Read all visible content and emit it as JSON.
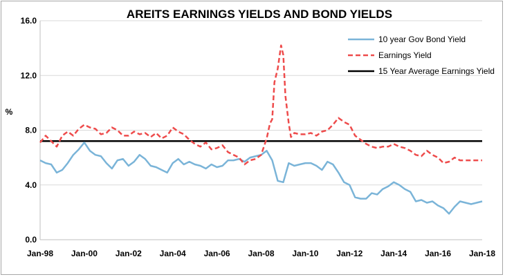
{
  "chart_data": {
    "type": "line",
    "title": "AREITS EARNINGS YIELDS AND BOND YIELDS",
    "ylabel": "%",
    "xlabel": "",
    "ylim": [
      0,
      16
    ],
    "xlim": [
      1998,
      2018
    ],
    "y_ticks": [
      "0.0",
      "4.0",
      "8.0",
      "12.0",
      "16.0"
    ],
    "y_tick_values": [
      0,
      4,
      8,
      12,
      16
    ],
    "x_ticks": [
      "Jan-98",
      "Jan-00",
      "Jan-02",
      "Jan-04",
      "Jan-06",
      "Jan-08",
      "Jan-10",
      "Jan-12",
      "Jan-14",
      "Jan-16",
      "Jan-18"
    ],
    "x_tick_values": [
      1998,
      2000,
      2002,
      2004,
      2006,
      2008,
      2010,
      2012,
      2014,
      2016,
      2018
    ],
    "legend_position": "top-right",
    "grid": "horizontal",
    "series": [
      {
        "name": "10 year Gov Bond Yield",
        "color": "#7ab4d8",
        "style": "solid",
        "x": [
          1998.0,
          1998.25,
          1998.5,
          1998.75,
          1999.0,
          1999.25,
          1999.5,
          1999.75,
          2000.0,
          2000.25,
          2000.5,
          2000.75,
          2001.0,
          2001.25,
          2001.5,
          2001.75,
          2002.0,
          2002.25,
          2002.5,
          2002.75,
          2003.0,
          2003.25,
          2003.5,
          2003.75,
          2004.0,
          2004.25,
          2004.5,
          2004.75,
          2005.0,
          2005.25,
          2005.5,
          2005.75,
          2006.0,
          2006.25,
          2006.5,
          2006.75,
          2007.0,
          2007.25,
          2007.5,
          2007.75,
          2008.0,
          2008.25,
          2008.5,
          2008.75,
          2009.0,
          2009.25,
          2009.5,
          2009.75,
          2010.0,
          2010.25,
          2010.5,
          2010.75,
          2011.0,
          2011.25,
          2011.5,
          2011.75,
          2012.0,
          2012.25,
          2012.5,
          2012.75,
          2013.0,
          2013.25,
          2013.5,
          2013.75,
          2014.0,
          2014.25,
          2014.5,
          2014.75,
          2015.0,
          2015.25,
          2015.5,
          2015.75,
          2016.0,
          2016.25,
          2016.5,
          2016.75,
          2017.0,
          2017.25,
          2017.5,
          2017.75,
          2018.0
        ],
        "values": [
          5.8,
          5.6,
          5.5,
          4.9,
          5.1,
          5.6,
          6.2,
          6.6,
          7.1,
          6.5,
          6.2,
          6.1,
          5.6,
          5.2,
          5.8,
          5.9,
          5.4,
          5.7,
          6.2,
          5.9,
          5.4,
          5.3,
          5.1,
          4.9,
          5.6,
          5.9,
          5.5,
          5.7,
          5.5,
          5.4,
          5.2,
          5.5,
          5.3,
          5.4,
          5.8,
          5.8,
          5.9,
          5.7,
          6.0,
          6.1,
          6.2,
          6.5,
          5.8,
          4.3,
          4.2,
          5.6,
          5.4,
          5.5,
          5.6,
          5.6,
          5.4,
          5.1,
          5.7,
          5.5,
          4.9,
          4.2,
          4.0,
          3.1,
          3.0,
          3.0,
          3.4,
          3.3,
          3.7,
          3.9,
          4.2,
          4.0,
          3.7,
          3.5,
          2.8,
          2.9,
          2.7,
          2.8,
          2.5,
          2.3,
          1.9,
          2.4,
          2.8,
          2.7,
          2.6,
          2.7,
          2.8
        ]
      },
      {
        "name": "Earnings Yield",
        "color": "#ee4b4b",
        "style": "dashed",
        "x": [
          1998.0,
          1998.25,
          1998.5,
          1998.75,
          1999.0,
          1999.25,
          1999.5,
          1999.75,
          2000.0,
          2000.25,
          2000.5,
          2000.75,
          2001.0,
          2001.25,
          2001.5,
          2001.75,
          2002.0,
          2002.25,
          2002.5,
          2002.75,
          2003.0,
          2003.25,
          2003.5,
          2003.75,
          2004.0,
          2004.25,
          2004.5,
          2004.75,
          2005.0,
          2005.25,
          2005.5,
          2005.75,
          2006.0,
          2006.25,
          2006.5,
          2006.75,
          2007.0,
          2007.25,
          2007.5,
          2007.75,
          2008.0,
          2008.25,
          2008.4,
          2008.5,
          2008.6,
          2008.75,
          2008.9,
          2009.0,
          2009.1,
          2009.25,
          2009.35,
          2009.5,
          2009.75,
          2010.0,
          2010.25,
          2010.5,
          2010.75,
          2011.0,
          2011.25,
          2011.5,
          2011.75,
          2012.0,
          2012.25,
          2012.5,
          2012.75,
          2013.0,
          2013.25,
          2013.5,
          2013.75,
          2014.0,
          2014.25,
          2014.5,
          2014.75,
          2015.0,
          2015.25,
          2015.5,
          2015.75,
          2016.0,
          2016.25,
          2016.5,
          2016.75,
          2017.0,
          2017.25,
          2017.5,
          2017.75,
          2018.0
        ],
        "values": [
          7.1,
          7.6,
          7.2,
          6.8,
          7.6,
          7.9,
          7.6,
          8.1,
          8.4,
          8.2,
          8.1,
          7.7,
          7.8,
          8.2,
          8.0,
          7.6,
          7.6,
          7.9,
          7.7,
          7.8,
          7.5,
          7.8,
          7.4,
          7.6,
          8.2,
          7.9,
          7.7,
          7.3,
          7.0,
          6.8,
          7.1,
          6.6,
          6.7,
          6.9,
          6.4,
          6.2,
          6.0,
          5.5,
          5.8,
          5.9,
          6.2,
          7.4,
          8.5,
          8.8,
          11.5,
          12.5,
          14.2,
          13.5,
          10.5,
          8.5,
          7.5,
          7.8,
          7.7,
          7.7,
          7.8,
          7.6,
          7.9,
          8.0,
          8.4,
          8.9,
          8.6,
          8.4,
          7.6,
          7.3,
          7.0,
          6.8,
          6.7,
          6.8,
          6.8,
          7.0,
          6.8,
          6.7,
          6.5,
          6.2,
          6.1,
          6.5,
          6.2,
          6.0,
          5.6,
          5.7,
          6.0,
          5.8,
          5.8,
          5.8,
          5.8,
          5.8
        ]
      },
      {
        "name": "15 Year Average Earnings Yield",
        "color": "#000000",
        "style": "solid",
        "x": [
          1998,
          2018
        ],
        "values": [
          7.2,
          7.2
        ]
      }
    ]
  }
}
